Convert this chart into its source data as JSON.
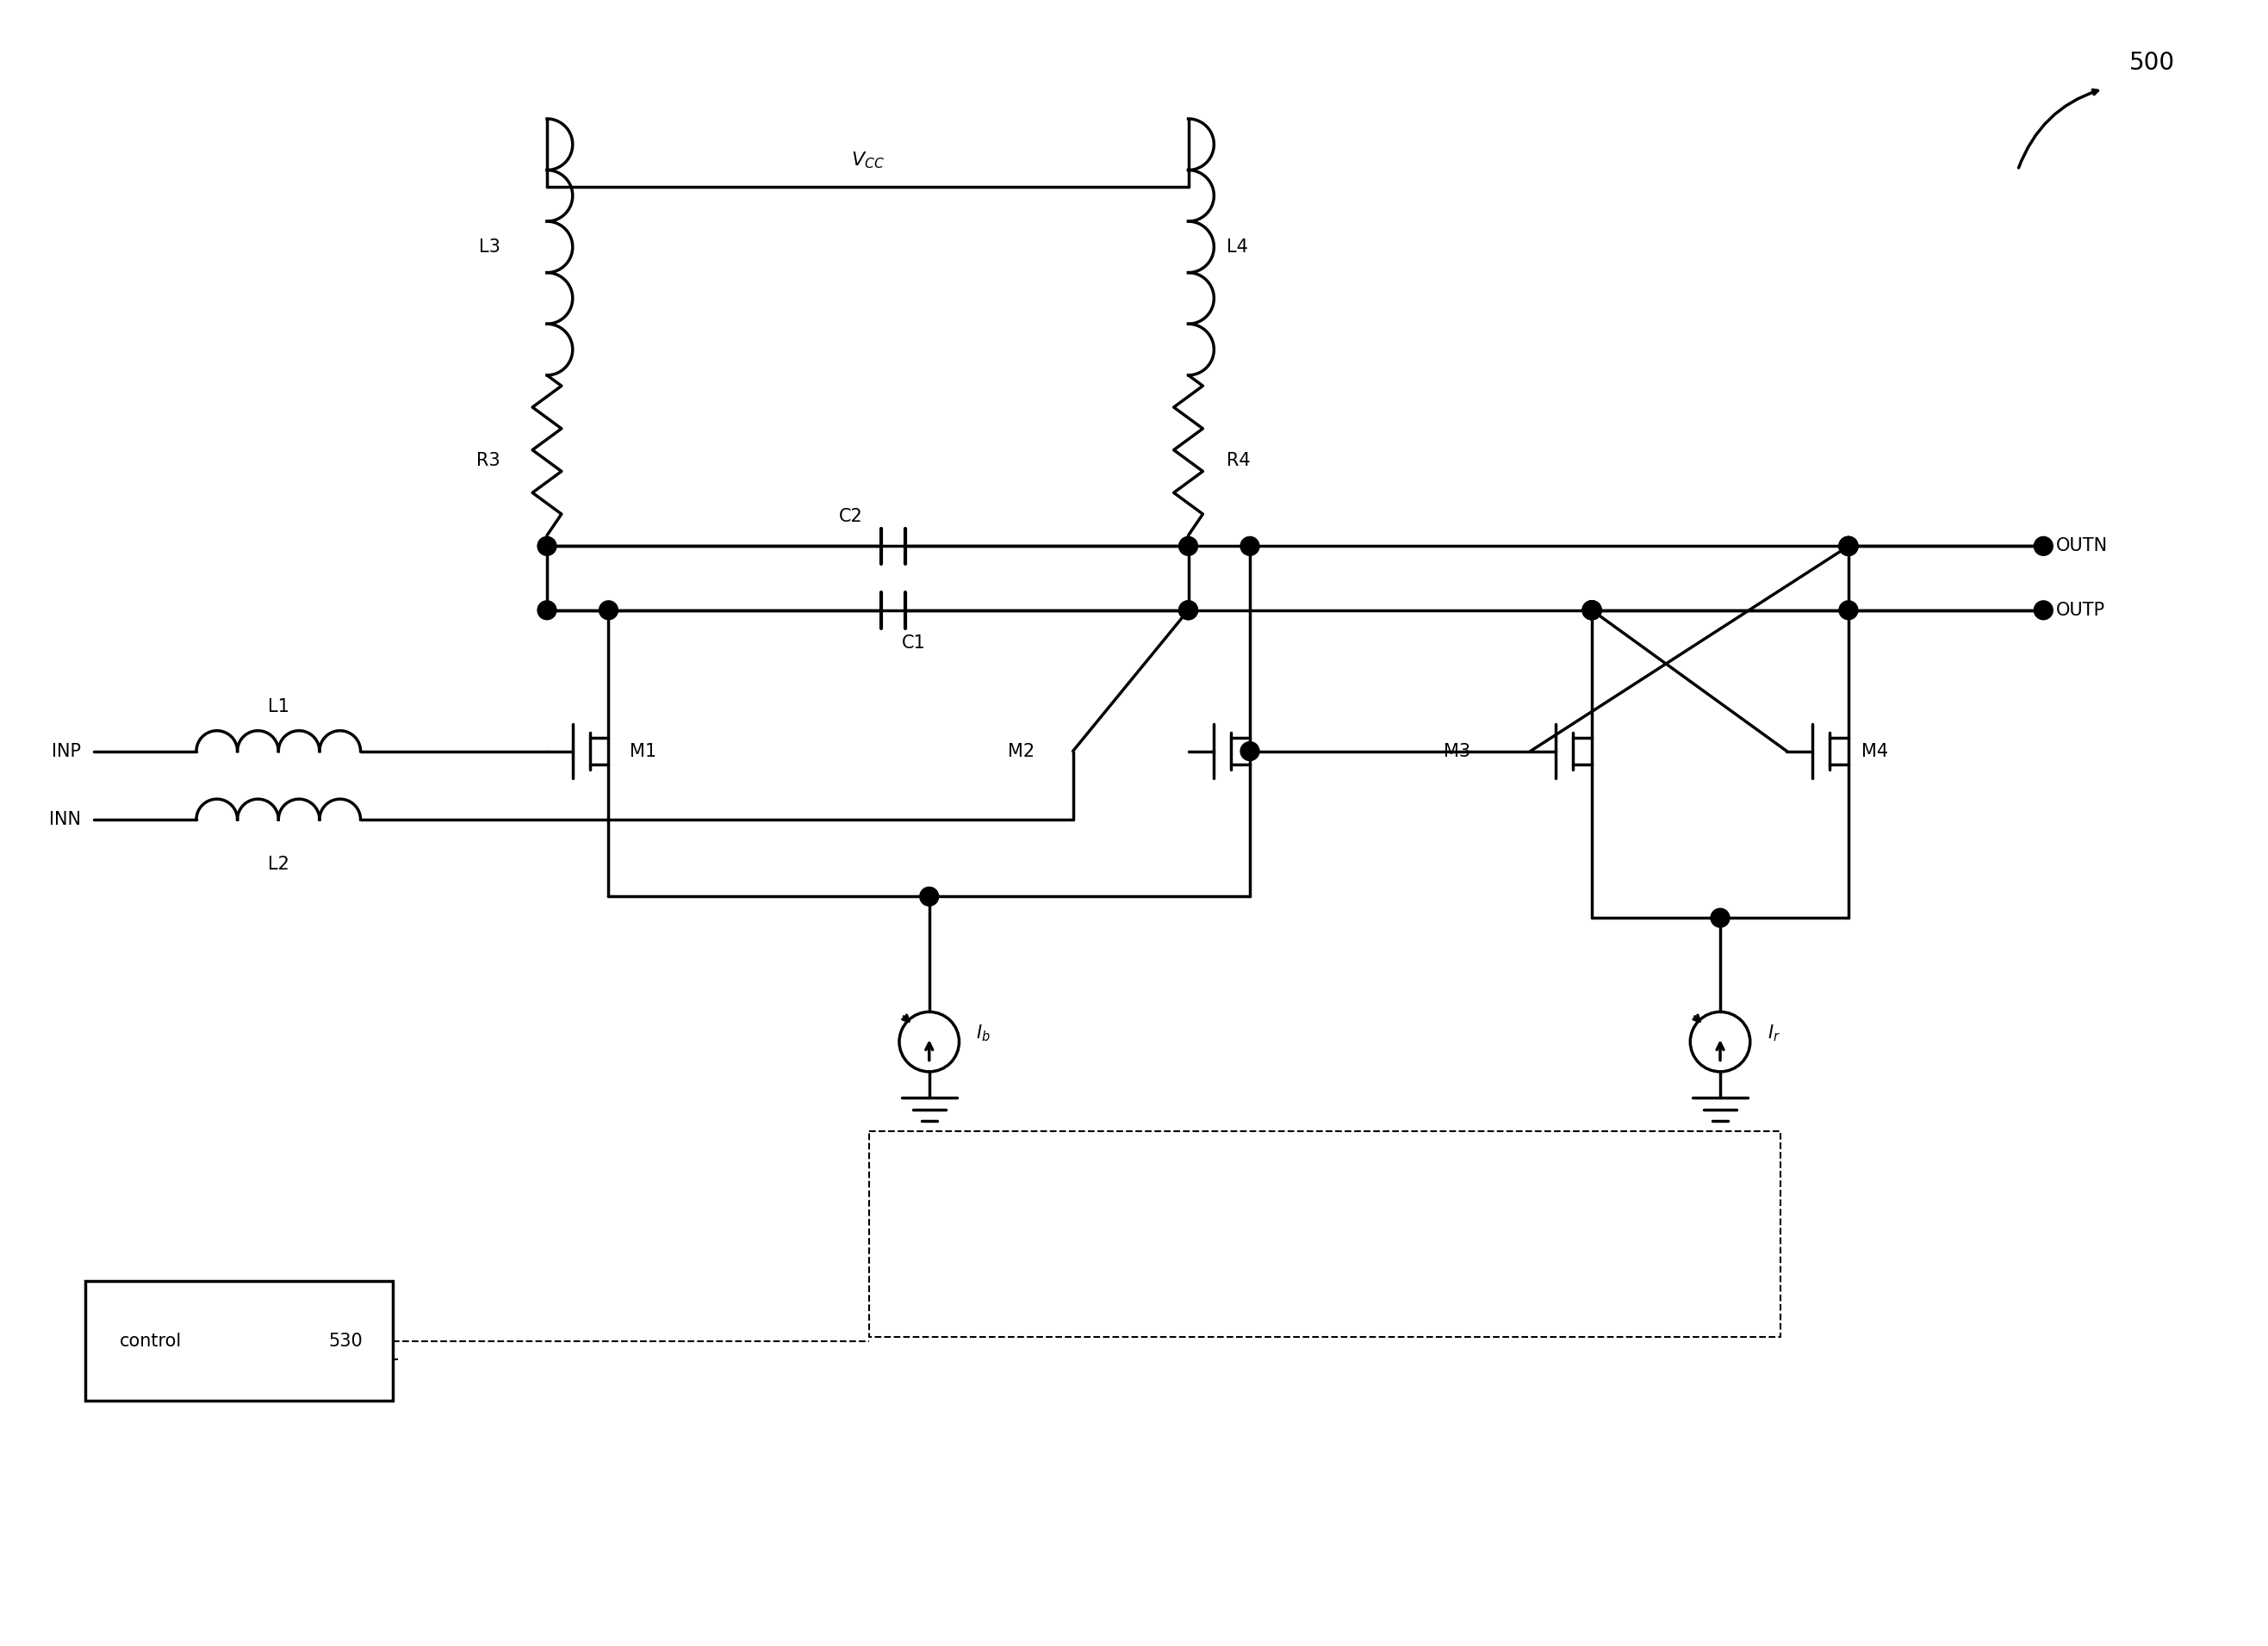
{
  "bg_color": "#ffffff",
  "lc": "#000000",
  "lw": 2.5,
  "fs": 15,
  "vcc": "V_{CC}",
  "outn": "OUTN",
  "outp": "OUTP",
  "inp": "INP",
  "inn": "INN",
  "l1": "L1",
  "l2": "L2",
  "l3": "L3",
  "l4": "L4",
  "r3": "R3",
  "r4": "R4",
  "c1": "C1",
  "c2": "C2",
  "m1": "M1",
  "m2": "M2",
  "m3": "M3",
  "m4": "M4",
  "ib": "I_b",
  "ir": "I_r",
  "ctrl": "control",
  "ctrl_num": "530",
  "fig_num": "500"
}
